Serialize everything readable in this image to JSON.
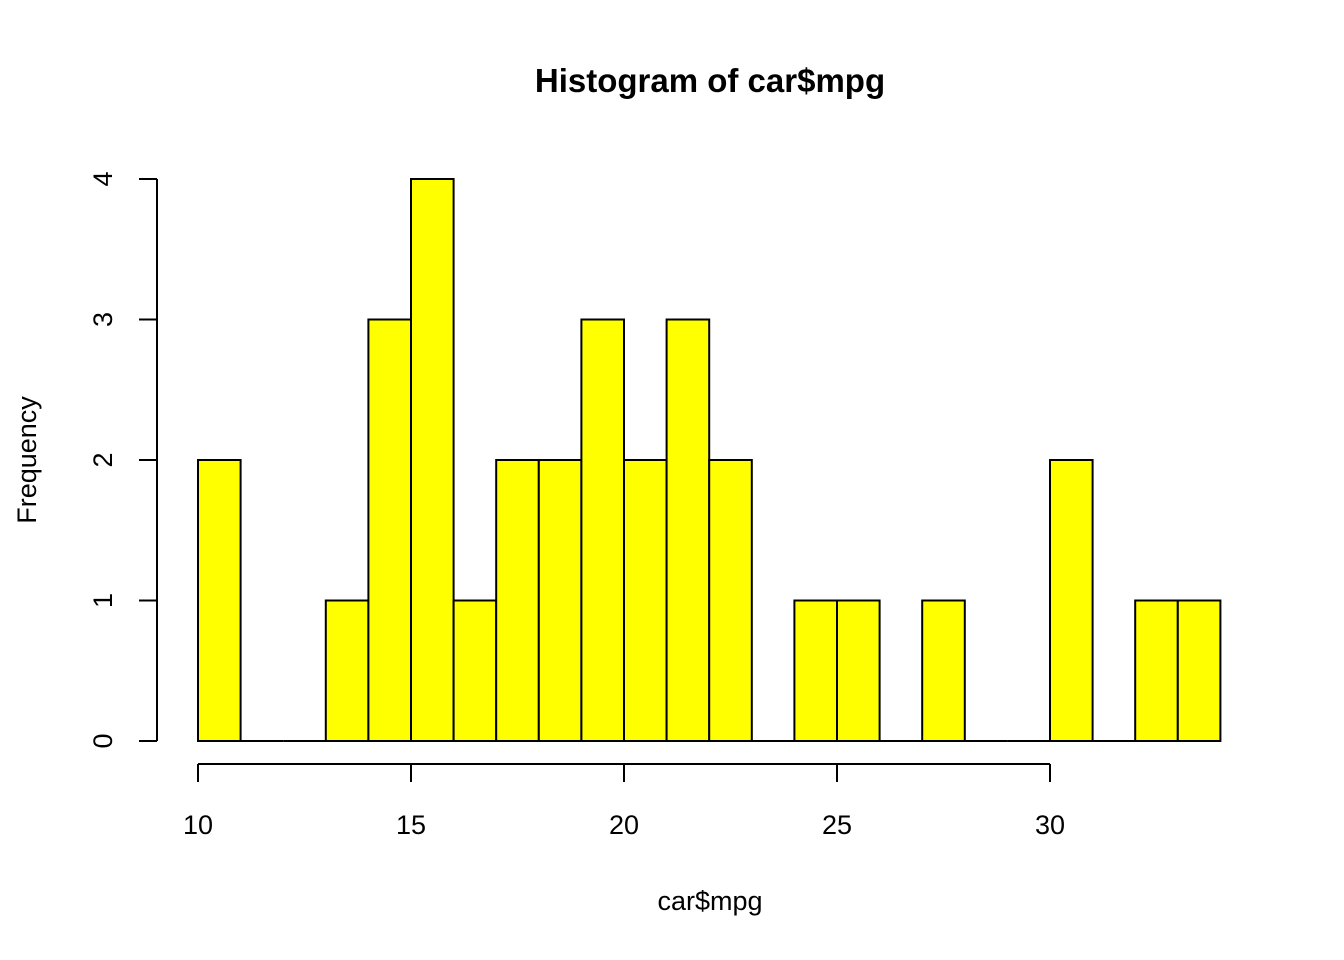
{
  "chart_data": {
    "type": "bar",
    "title": "Histogram of car$mpg",
    "xlabel": "car$mpg",
    "ylabel": "Frequency",
    "bins": [
      {
        "x0": 10,
        "x1": 11,
        "count": 2
      },
      {
        "x0": 11,
        "x1": 12,
        "count": 0
      },
      {
        "x0": 12,
        "x1": 13,
        "count": 0
      },
      {
        "x0": 13,
        "x1": 14,
        "count": 1
      },
      {
        "x0": 14,
        "x1": 15,
        "count": 3
      },
      {
        "x0": 15,
        "x1": 16,
        "count": 4
      },
      {
        "x0": 16,
        "x1": 17,
        "count": 1
      },
      {
        "x0": 17,
        "x1": 18,
        "count": 2
      },
      {
        "x0": 18,
        "x1": 19,
        "count": 2
      },
      {
        "x0": 19,
        "x1": 20,
        "count": 3
      },
      {
        "x0": 20,
        "x1": 21,
        "count": 2
      },
      {
        "x0": 21,
        "x1": 22,
        "count": 3
      },
      {
        "x0": 22,
        "x1": 23,
        "count": 2
      },
      {
        "x0": 23,
        "x1": 24,
        "count": 0
      },
      {
        "x0": 24,
        "x1": 25,
        "count": 1
      },
      {
        "x0": 25,
        "x1": 26,
        "count": 1
      },
      {
        "x0": 26,
        "x1": 27,
        "count": 0
      },
      {
        "x0": 27,
        "x1": 28,
        "count": 1
      },
      {
        "x0": 28,
        "x1": 29,
        "count": 0
      },
      {
        "x0": 29,
        "x1": 30,
        "count": 0
      },
      {
        "x0": 30,
        "x1": 31,
        "count": 2
      },
      {
        "x0": 31,
        "x1": 32,
        "count": 0
      },
      {
        "x0": 32,
        "x1": 33,
        "count": 1
      },
      {
        "x0": 33,
        "x1": 34,
        "count": 1
      }
    ],
    "xlim": [
      10,
      34
    ],
    "ylim": [
      0,
      4
    ],
    "x_ticks": [
      10,
      15,
      20,
      25,
      30
    ],
    "y_ticks": [
      0,
      1,
      2,
      3,
      4
    ],
    "bar_color": "#FFFF00",
    "grid": false,
    "legend": "none"
  }
}
